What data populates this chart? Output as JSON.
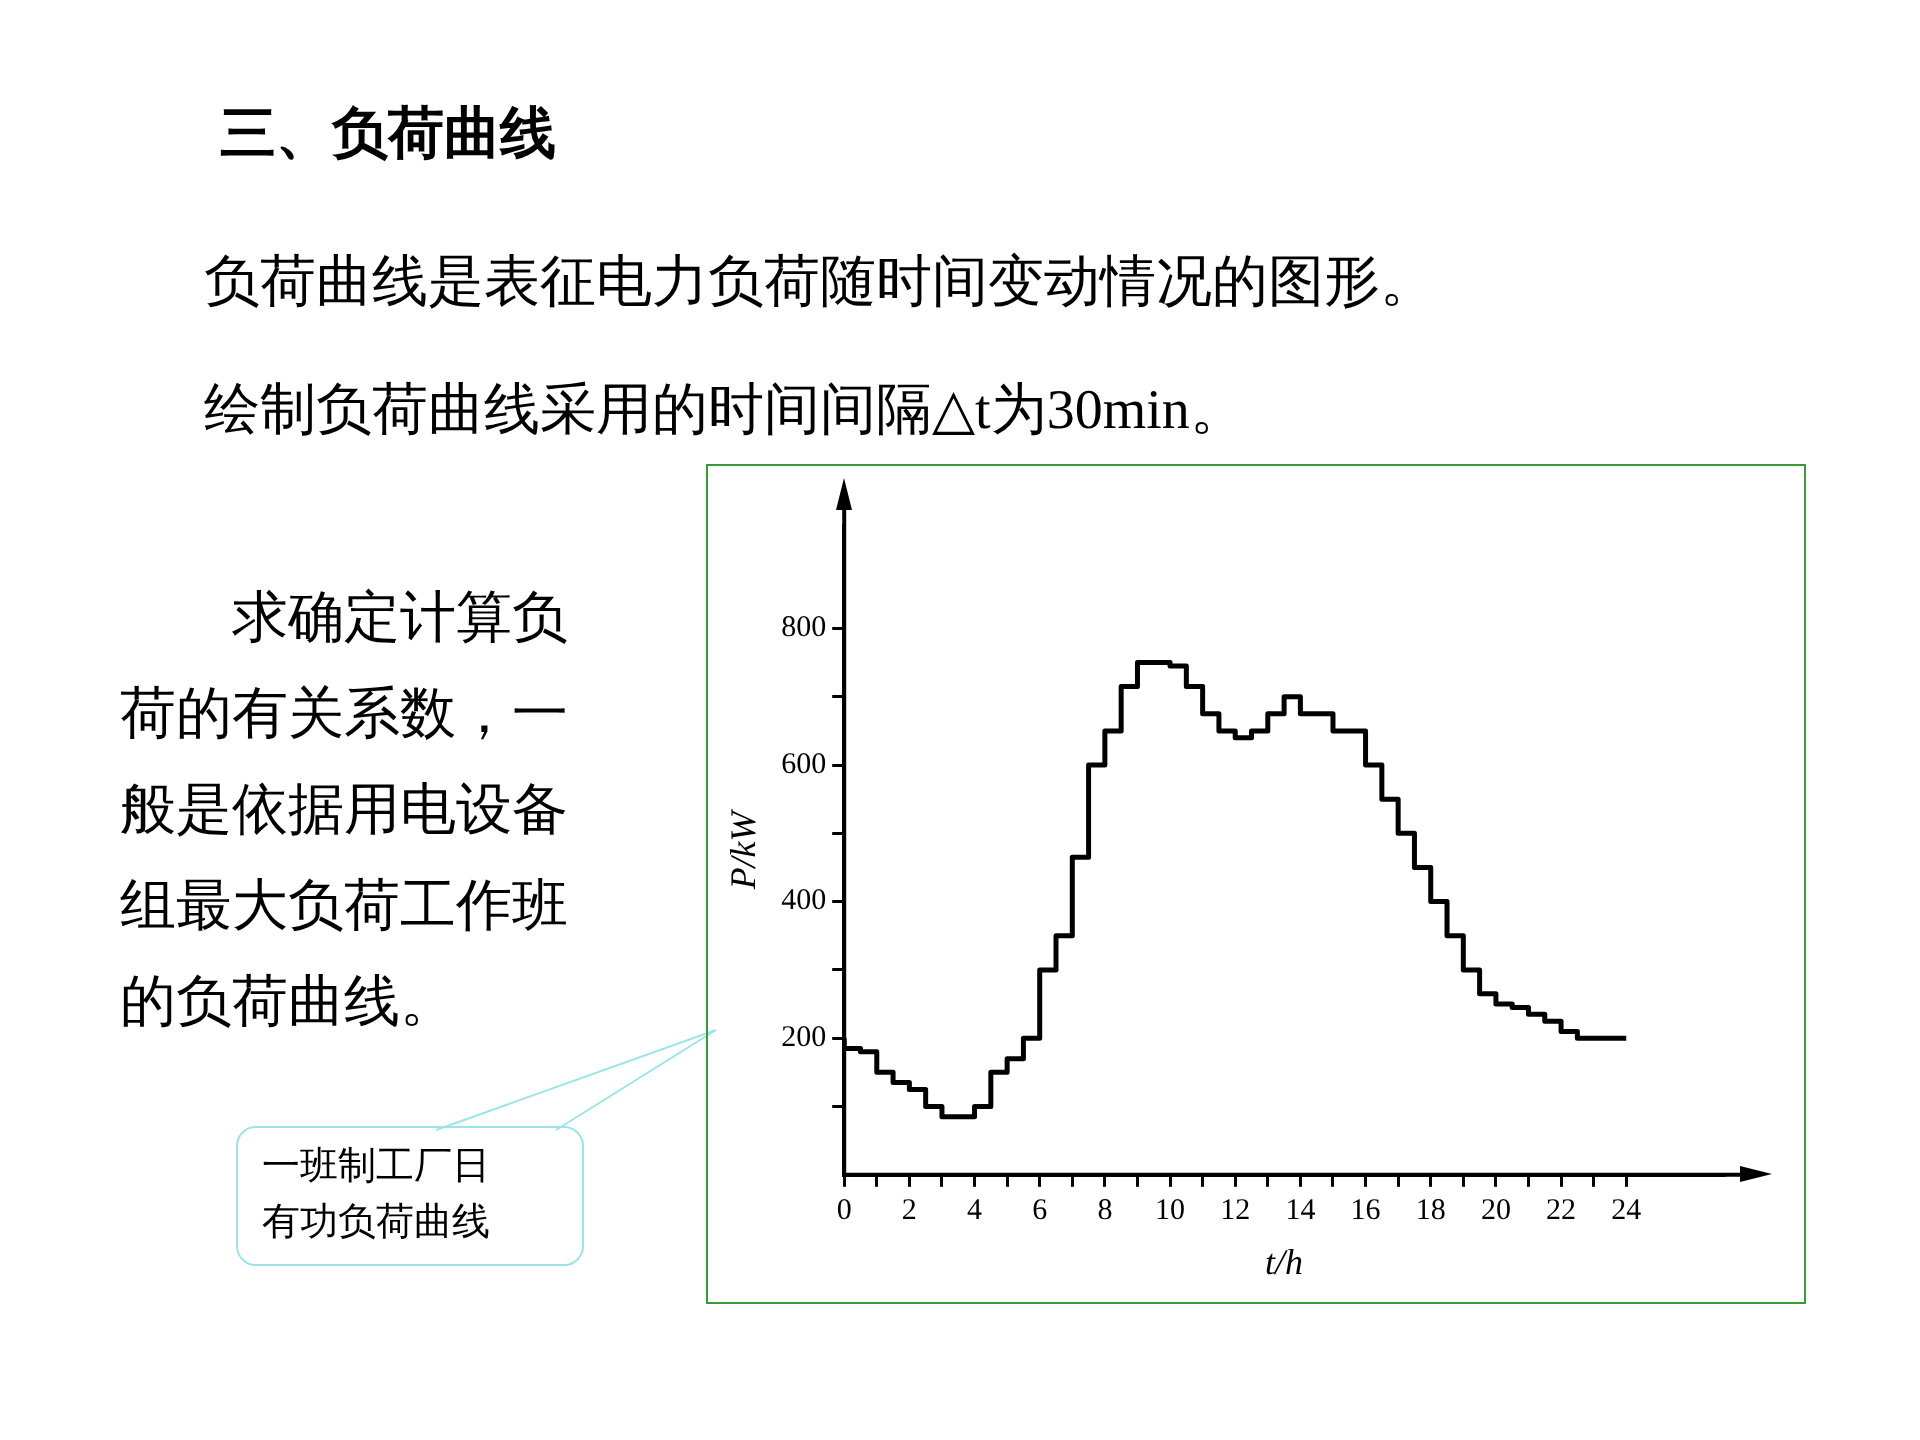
{
  "chart_data": {
    "type": "step",
    "title": "三、负荷曲线",
    "subtitle": "负荷曲线是表征电力负荷随时间变动情况的图形。",
    "xlabel": "t/h",
    "ylabel": "P/kW",
    "annotations": [
      "绘制负荷曲线采用的时间间隔△t为30min。",
      "求确定计算负荷的有关系数，一般是依据用电设备组最大负荷工作班的负荷曲线。",
      "一班制工厂日有功负荷曲线"
    ],
    "x": [
      0,
      0.5,
      1,
      1.5,
      2,
      2.5,
      3,
      3.5,
      4,
      4.5,
      5,
      5.5,
      6,
      6.5,
      7,
      7.5,
      8,
      8.5,
      9,
      9.5,
      10,
      10.5,
      11,
      11.5,
      12,
      12.5,
      13,
      13.5,
      14,
      14.5,
      15,
      15.5,
      16,
      16.5,
      17,
      17.5,
      18,
      18.5,
      19,
      19.5,
      20,
      20.5,
      21,
      21.5,
      22,
      22.5,
      23,
      23.5,
      24
    ],
    "series": [
      {
        "color": "#000000",
        "values": [
          200,
          185,
          180,
          150,
          135,
          125,
          100,
          85,
          85,
          100,
          150,
          170,
          200,
          300,
          350,
          465,
          600,
          650,
          715,
          750,
          750,
          745,
          715,
          675,
          650,
          640,
          650,
          675,
          700,
          675,
          675,
          650,
          650,
          600,
          550,
          500,
          450,
          400,
          350,
          300,
          265,
          250,
          245,
          235,
          225,
          210,
          200,
          200,
          200
        ]
      }
    ],
    "xlim": [
      0,
      27
    ],
    "ylim": [
      0,
      950
    ],
    "xticks": [
      {
        "value": 0,
        "label": "0"
      },
      {
        "value": 1,
        "label": null
      },
      2,
      {
        "value": 3,
        "label": null
      },
      4,
      {
        "value": 5,
        "label": null
      },
      6,
      {
        "value": 7,
        "label": null
      },
      8,
      {
        "value": 9,
        "label": null
      },
      10,
      {
        "value": 11,
        "label": null
      },
      12,
      {
        "value": 13,
        "label": null
      },
      14,
      {
        "value": 15,
        "label": null
      },
      16,
      {
        "value": 17,
        "label": null
      },
      18,
      {
        "value": 19,
        "label": null
      },
      20,
      {
        "value": 21,
        "label": null
      },
      22,
      {
        "value": 23,
        "label": null
      },
      24
    ],
    "yticks": [
      {
        "value": 100,
        "label": null
      },
      200,
      {
        "value": 300,
        "label": null
      },
      400,
      {
        "value": 500,
        "label": null
      },
      600,
      {
        "value": 700,
        "label": null
      },
      800
    ],
    "grid": false,
    "legend": false
  }
}
